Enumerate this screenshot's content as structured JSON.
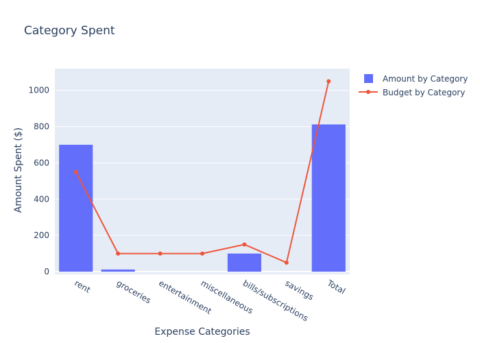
{
  "chart_data": {
    "type": "bar",
    "title": "Category Spent",
    "xlabel": "Expense Categories",
    "ylabel": "Amount Spent ($)",
    "categories": [
      "rent",
      "groceries",
      "entertainment",
      "miscellaneous",
      "bills/subscriptions",
      "savings",
      "Total"
    ],
    "series": [
      {
        "name": "Amount by Category",
        "type": "bar",
        "color": "#636efa",
        "values": [
          700,
          12,
          0,
          0,
          100,
          0,
          812
        ]
      },
      {
        "name": "Budget by Category",
        "type": "line",
        "color": "#ef553b",
        "values": [
          550,
          100,
          100,
          100,
          150,
          50,
          1050
        ]
      }
    ],
    "ylim": [
      -15,
      1120
    ],
    "yticks": [
      0,
      200,
      400,
      600,
      800,
      1000
    ],
    "grid": true,
    "legend": "top-right",
    "background": "#e5ecf6"
  }
}
